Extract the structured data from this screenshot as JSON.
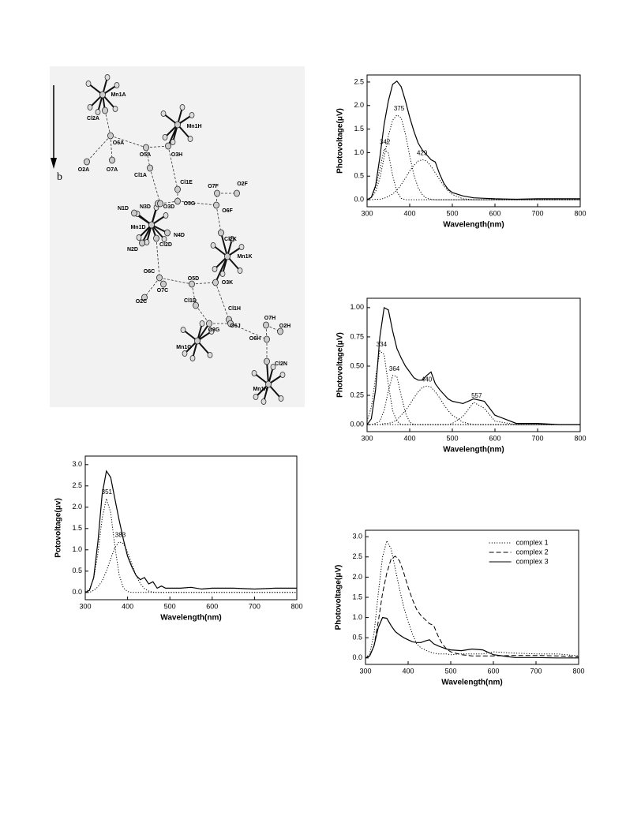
{
  "diagram": {
    "axis_label": "b",
    "atom_labels": [
      "Mn1A",
      "Cl2A",
      "O6A",
      "O5A",
      "O3H",
      "Mn1H",
      "O2A",
      "O7A",
      "Cl1A",
      "Cl1E",
      "O7F",
      "O2F",
      "N3D",
      "O3D",
      "O5G",
      "O6F",
      "N1D",
      "Mn1D",
      "N4D",
      "Cl2D",
      "N2D",
      "Cl2K",
      "Mn1K",
      "O6C",
      "O5D",
      "O3K",
      "O2C",
      "O7C",
      "Cl1D",
      "Cl1H",
      "O2H",
      "O7H",
      "O5J",
      "O3G",
      "O6H",
      "Mn1G",
      "Cl2N",
      "Mn1N"
    ]
  },
  "chart_data": [
    {
      "type": "line",
      "xlabel": "Wavelength(nm)",
      "ylabel": "Photovoltage(μV)",
      "x": [
        300,
        310,
        320,
        330,
        340,
        350,
        360,
        370,
        380,
        390,
        400,
        410,
        420,
        430,
        440,
        450,
        460,
        470,
        480,
        490,
        500,
        525,
        550,
        575,
        600,
        650,
        700,
        750,
        800
      ],
      "xlim": [
        300,
        800
      ],
      "xticks": [
        300,
        400,
        500,
        600,
        700,
        800
      ],
      "ylim": [
        -0.15,
        2.65
      ],
      "yticks": [
        {
          "value": 0,
          "label": "0.0"
        },
        {
          "value": 0.5,
          "label": "0.5"
        },
        {
          "value": 1,
          "label": "1.0"
        },
        {
          "value": 1.5,
          "label": "1.5"
        },
        {
          "value": 2,
          "label": "2.0"
        },
        {
          "value": 2.5,
          "label": "2.5"
        }
      ],
      "series": [
        {
          "style": "solid",
          "color": "#000000",
          "values": [
            0,
            0.05,
            0.3,
            0.9,
            1.6,
            2.1,
            2.45,
            2.52,
            2.4,
            2.1,
            1.75,
            1.45,
            1.2,
            1.05,
            0.95,
            0.85,
            0.8,
            0.55,
            0.35,
            0.22,
            0.15,
            0.08,
            0.04,
            0.03,
            0.02,
            0.01,
            0.02,
            0.02,
            0.02
          ]
        },
        {
          "style": "dotted",
          "color": "#000000",
          "values": [
            0,
            0.05,
            0.26,
            0.65,
            1.08,
            0.99,
            0.51,
            0.17,
            0.03,
            0,
            0,
            0,
            0,
            0,
            0,
            0,
            0,
            0,
            0,
            0,
            0,
            0,
            0,
            0,
            0,
            0,
            0,
            0,
            0
          ]
        },
        {
          "style": "dotted",
          "color": "#000000",
          "values": [
            0.01,
            0.04,
            0.17,
            0.46,
            0.9,
            1.36,
            1.69,
            1.8,
            1.74,
            1.4,
            0.93,
            0.52,
            0.25,
            0.1,
            0.03,
            0.01,
            0,
            0,
            0,
            0,
            0,
            0,
            0,
            0,
            0,
            0,
            0,
            0,
            0
          ]
        },
        {
          "style": "dotted",
          "color": "#000000",
          "values": [
            0,
            0,
            0.01,
            0.01,
            0.03,
            0.07,
            0.12,
            0.2,
            0.32,
            0.46,
            0.61,
            0.73,
            0.82,
            0.85,
            0.82,
            0.71,
            0.57,
            0.43,
            0.29,
            0.19,
            0.11,
            0.02,
            0,
            0,
            0,
            0,
            0,
            0,
            0
          ]
        }
      ],
      "peak_labels": [
        342,
        375,
        429
      ]
    },
    {
      "type": "line",
      "xlabel": "Wavelength(nm)",
      "ylabel": "Photovoltage(μV)",
      "x": [
        300,
        310,
        320,
        330,
        340,
        350,
        360,
        370,
        380,
        390,
        400,
        410,
        420,
        430,
        440,
        450,
        460,
        470,
        480,
        490,
        500,
        525,
        550,
        575,
        600,
        650,
        700,
        750,
        800
      ],
      "xlim": [
        300,
        800
      ],
      "xticks": [
        300,
        400,
        500,
        600,
        700,
        800
      ],
      "ylim": [
        -0.06,
        1.08
      ],
      "yticks": [
        {
          "value": 0,
          "label": "0.00"
        },
        {
          "value": 0.25,
          "label": "0.25"
        },
        {
          "value": 0.5,
          "label": "0.50"
        },
        {
          "value": 0.75,
          "label": "0.75"
        },
        {
          "value": 1,
          "label": "1.00"
        }
      ],
      "series": [
        {
          "style": "solid",
          "color": "#000000",
          "values": [
            0,
            0.05,
            0.3,
            0.75,
            1.0,
            0.98,
            0.8,
            0.65,
            0.57,
            0.5,
            0.45,
            0.4,
            0.38,
            0.38,
            0.42,
            0.45,
            0.35,
            0.3,
            0.26,
            0.22,
            0.2,
            0.18,
            0.22,
            0.2,
            0.08,
            0.01,
            0.01,
            0,
            0
          ]
        },
        {
          "style": "dotted",
          "color": "#000000",
          "values": [
            0.03,
            0.15,
            0.4,
            0.63,
            0.6,
            0.34,
            0.12,
            0.03,
            0,
            0,
            0,
            0,
            0,
            0,
            0,
            0,
            0,
            0,
            0,
            0,
            0,
            0,
            0,
            0,
            0,
            0,
            0,
            0,
            0
          ]
        },
        {
          "style": "dotted",
          "color": "#000000",
          "values": [
            0,
            0,
            0.01,
            0.03,
            0.12,
            0.29,
            0.42,
            0.41,
            0.25,
            0.1,
            0.02,
            0,
            0,
            0,
            0,
            0,
            0,
            0,
            0,
            0,
            0,
            0,
            0,
            0,
            0,
            0,
            0,
            0,
            0
          ]
        },
        {
          "style": "dotted",
          "color": "#000000",
          "values": [
            0,
            0,
            0,
            0,
            0.01,
            0.01,
            0.02,
            0.04,
            0.08,
            0.12,
            0.17,
            0.23,
            0.28,
            0.32,
            0.33,
            0.32,
            0.28,
            0.23,
            0.17,
            0.12,
            0.08,
            0.02,
            0,
            0,
            0,
            0,
            0,
            0,
            0
          ]
        },
        {
          "style": "dotted",
          "color": "#000000",
          "values": [
            0,
            0,
            0,
            0,
            0,
            0,
            0,
            0,
            0,
            0,
            0,
            0,
            0,
            0,
            0,
            0,
            0,
            0,
            0,
            0,
            0.01,
            0.07,
            0.19,
            0.14,
            0.03,
            0,
            0,
            0,
            0
          ]
        }
      ],
      "peak_labels": [
        334,
        364,
        440,
        557
      ]
    },
    {
      "type": "line",
      "xlabel": "Wavelength(nm)",
      "ylabel": "Potovoltage(μv)",
      "x": [
        300,
        310,
        320,
        330,
        340,
        350,
        360,
        370,
        380,
        390,
        400,
        410,
        420,
        430,
        440,
        450,
        460,
        470,
        480,
        490,
        500,
        525,
        550,
        575,
        600,
        650,
        700,
        750,
        800
      ],
      "xlim": [
        300,
        800
      ],
      "xticks": [
        300,
        400,
        500,
        600,
        700,
        800
      ],
      "ylim": [
        -0.17,
        3.2
      ],
      "yticks": [
        {
          "value": 0,
          "label": "0.0"
        },
        {
          "value": 0.5,
          "label": "0.5"
        },
        {
          "value": 1,
          "label": "1.0"
        },
        {
          "value": 1.5,
          "label": "1.5"
        },
        {
          "value": 2,
          "label": "2.0"
        },
        {
          "value": 2.5,
          "label": "2.5"
        },
        {
          "value": 3,
          "label": "3.0"
        }
      ],
      "series": [
        {
          "style": "solid",
          "color": "#000000",
          "values": [
            0,
            0.05,
            0.35,
            1.2,
            2.3,
            2.85,
            2.7,
            2.2,
            1.7,
            1.25,
            0.85,
            0.6,
            0.4,
            0.3,
            0.35,
            0.2,
            0.25,
            0.1,
            0.15,
            0.1,
            0.1,
            0.1,
            0.12,
            0.08,
            0.1,
            0.1,
            0.08,
            0.1,
            0.1
          ]
        },
        {
          "style": "dotted",
          "color": "#000000",
          "values": [
            0.01,
            0.08,
            0.33,
            0.93,
            1.74,
            2.2,
            1.88,
            1.08,
            0.42,
            0.11,
            0.02,
            0,
            0,
            0,
            0,
            0,
            0,
            0,
            0,
            0,
            0,
            0,
            0,
            0,
            0,
            0,
            0,
            0,
            0
          ]
        },
        {
          "style": "dotted",
          "color": "#000000",
          "values": [
            0,
            0,
            0.05,
            0.13,
            0.27,
            0.5,
            0.79,
            1.05,
            1.19,
            1.15,
            0.95,
            0.67,
            0.4,
            0.21,
            0.09,
            0.03,
            0.01,
            0,
            0,
            0,
            0,
            0,
            0,
            0,
            0,
            0,
            0,
            0,
            0
          ]
        }
      ],
      "peak_labels": [
        351,
        383
      ]
    },
    {
      "type": "line",
      "xlabel": "Wavelength(nm)",
      "ylabel": "Photovoltage(μV)",
      "x": [
        300,
        310,
        320,
        330,
        340,
        350,
        360,
        370,
        380,
        390,
        400,
        410,
        420,
        430,
        440,
        450,
        460,
        470,
        480,
        490,
        500,
        525,
        550,
        575,
        600,
        650,
        700,
        750,
        800
      ],
      "xlim": [
        300,
        800
      ],
      "xticks": [
        300,
        400,
        500,
        600,
        700,
        800
      ],
      "ylim": [
        -0.16,
        3.16
      ],
      "yticks": [
        {
          "value": 0,
          "label": "0.0"
        },
        {
          "value": 0.5,
          "label": "0.5"
        },
        {
          "value": 1,
          "label": "1.0"
        },
        {
          "value": 1.5,
          "label": "1.5"
        },
        {
          "value": 2,
          "label": "2.0"
        },
        {
          "value": 2.5,
          "label": "2.5"
        },
        {
          "value": 3,
          "label": "3.0"
        }
      ],
      "legend": "upper right",
      "series": [
        {
          "name": "complex 1",
          "style": "dotted",
          "color": "#000000",
          "values": [
            0,
            0.1,
            0.6,
            1.6,
            2.5,
            2.9,
            2.7,
            2.2,
            1.7,
            1.25,
            0.9,
            0.6,
            0.35,
            0.25,
            0.2,
            0.15,
            0.12,
            0.1,
            0.1,
            0.1,
            0.08,
            0.1,
            0.1,
            0.1,
            0.15,
            0.12,
            0.1,
            0.1,
            0.05
          ]
        },
        {
          "name": "complex 2",
          "style": "dashed",
          "color": "#000000",
          "values": [
            0,
            0.05,
            0.3,
            0.9,
            1.6,
            2.1,
            2.45,
            2.52,
            2.4,
            2.1,
            1.75,
            1.45,
            1.2,
            1.05,
            0.95,
            0.85,
            0.8,
            0.55,
            0.35,
            0.22,
            0.15,
            0.08,
            0.05,
            0.05,
            0.05,
            0.06,
            0.06,
            0.05,
            0.03
          ]
        },
        {
          "name": "complex 3",
          "style": "solid",
          "color": "#000000",
          "values": [
            0,
            0.05,
            0.3,
            0.75,
            1.0,
            0.98,
            0.8,
            0.65,
            0.57,
            0.5,
            0.45,
            0.4,
            0.38,
            0.38,
            0.42,
            0.45,
            0.35,
            0.3,
            0.26,
            0.22,
            0.2,
            0.18,
            0.22,
            0.2,
            0.08,
            0.01,
            0.01,
            0,
            0
          ]
        }
      ]
    }
  ]
}
